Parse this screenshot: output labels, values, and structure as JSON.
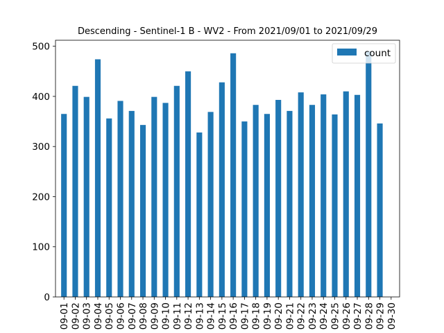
{
  "chart_data": {
    "type": "bar",
    "title": "Descending - Sentinel-1 B - WV2 - From 2021/09/01 to 2021/09/29",
    "xlabel": "",
    "ylabel": "",
    "ylim": [
      0,
      512
    ],
    "yticks": [
      0,
      100,
      200,
      300,
      400,
      500
    ],
    "grid": false,
    "legend_position": "top-right",
    "bar_color": "#1f77b4",
    "categories": [
      "09-01",
      "09-02",
      "09-03",
      "09-04",
      "09-05",
      "09-06",
      "09-07",
      "09-08",
      "09-09",
      "09-10",
      "09-11",
      "09-12",
      "09-13",
      "09-14",
      "09-15",
      "09-16",
      "09-17",
      "09-18",
      "09-19",
      "09-20",
      "09-21",
      "09-22",
      "09-23",
      "09-24",
      "09-25",
      "09-26",
      "09-27",
      "09-28",
      "09-29",
      "09-30"
    ],
    "series": [
      {
        "name": "count",
        "values": [
          365,
          421,
          399,
          474,
          356,
          391,
          371,
          343,
          399,
          387,
          421,
          450,
          328,
          369,
          428,
          486,
          350,
          383,
          365,
          393,
          371,
          408,
          383,
          404,
          364,
          410,
          403,
          490,
          346,
          0
        ]
      }
    ]
  }
}
